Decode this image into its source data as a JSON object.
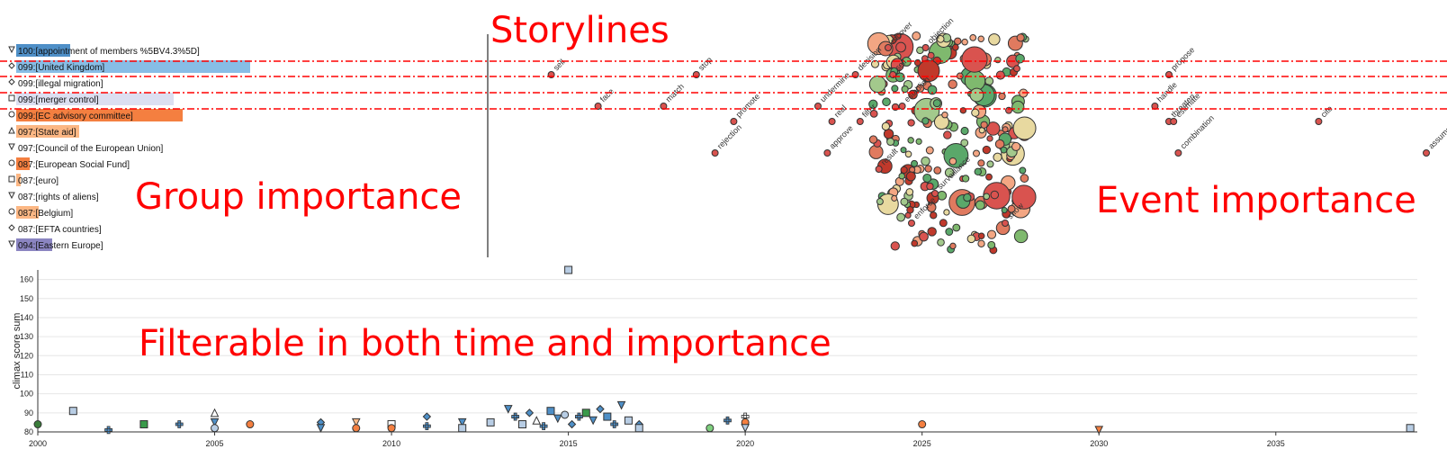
{
  "overlays": {
    "storylines": "Storylines",
    "group_importance": "Group importance",
    "event_importance": "Event importance",
    "filterable": "Filterable in both time and importance"
  },
  "groups": [
    {
      "code": "100",
      "label": "[appointment of members %5BV4.3%5D]",
      "color": "#4e8fc7",
      "importance": 0.12,
      "icon": "triangle-down-icon"
    },
    {
      "code": "099",
      "label": "[United Kingdom]",
      "color": "#87bde6",
      "importance": 0.52,
      "icon": "diamond-icon"
    },
    {
      "code": "099",
      "label": "[illegal migration]",
      "color": "#ffffff",
      "importance": 0.0,
      "icon": "diamond-icon"
    },
    {
      "code": "099",
      "label": "[merger control]",
      "color": "#dcdff1",
      "importance": 0.35,
      "icon": "square-icon"
    },
    {
      "code": "099",
      "label": "[EC advisory committee]",
      "color": "#f47f40",
      "importance": 0.37,
      "icon": "circle-icon"
    },
    {
      "code": "097",
      "label": "[State aid]",
      "color": "#fcb784",
      "importance": 0.14,
      "icon": "triangle-up-icon"
    },
    {
      "code": "097",
      "label": "[Council of the European Union]",
      "color": "#ffffff",
      "importance": 0.0,
      "icon": "triangle-down-icon"
    },
    {
      "code": "087",
      "label": "[European Social Fund]",
      "color": "#f47f40",
      "importance": 0.03,
      "icon": "circle-icon"
    },
    {
      "code": "087",
      "label": "[euro]",
      "color": "#fcb784",
      "importance": 0.01,
      "icon": "square-icon"
    },
    {
      "code": "087",
      "label": "[rights of aliens]",
      "color": "#ffffff",
      "importance": 0.0,
      "icon": "triangle-down-icon"
    },
    {
      "code": "087",
      "label": "[Belgium]",
      "color": "#fcb784",
      "importance": 0.05,
      "icon": "circle-icon"
    },
    {
      "code": "087",
      "label": "[EFTA countries]",
      "color": "#ffffff",
      "importance": 0.0,
      "icon": "diamond-icon"
    },
    {
      "code": "094",
      "label": "[Eastern Europe]",
      "color": "#8b85c1",
      "importance": 0.08,
      "icon": "triangle-down-icon"
    }
  ],
  "event_labels": [
    {
      "text": "sell",
      "row": 1,
      "x": 0.13
    },
    {
      "text": "face",
      "row": 2,
      "x": 0.23
    },
    {
      "text": "match",
      "row": 2,
      "x": 0.37
    },
    {
      "text": "stop",
      "row": 1,
      "x": 0.44
    },
    {
      "text": "rejection",
      "row": 4,
      "x": 0.48
    },
    {
      "text": "promote",
      "row": 3,
      "x": 0.52
    },
    {
      "text": "undermine",
      "row": 2,
      "x": 0.7
    },
    {
      "text": "real",
      "row": 3,
      "x": 0.73
    },
    {
      "text": "approve",
      "row": 4,
      "x": 0.72
    },
    {
      "text": "decision",
      "row": 1,
      "x": 0.78
    },
    {
      "text": "filter",
      "row": 3,
      "x": 0.79
    },
    {
      "text": "result",
      "row": 5,
      "x": 0.83
    },
    {
      "text": "recover",
      "row": 0,
      "x": 0.85
    },
    {
      "text": "sell",
      "row": 1,
      "x": 0.86
    },
    {
      "text": "establish",
      "row": 2,
      "x": 0.88
    },
    {
      "text": "objection",
      "row": 0,
      "x": 0.93
    },
    {
      "text": "propose",
      "row": 1,
      "x": 1.45
    },
    {
      "text": "handle",
      "row": 2,
      "x": 1.42
    },
    {
      "text": "threaten",
      "row": 3,
      "x": 1.45
    },
    {
      "text": "estimate",
      "row": 3,
      "x": 1.46
    },
    {
      "text": "combination",
      "row": 4,
      "x": 1.47
    },
    {
      "text": "cite",
      "row": 3,
      "x": 1.77
    },
    {
      "text": "assumption",
      "row": 4,
      "x": 2.0
    },
    {
      "text": "enforce",
      "row": 7,
      "x": 0.9
    },
    {
      "text": "surveillance",
      "row": 6,
      "x": 0.95
    },
    {
      "text": "show",
      "row": 7,
      "x": 1.1
    }
  ],
  "chart_data": {
    "type": "scatter",
    "xlabel": "",
    "ylabel": "climax score sum",
    "xlim": [
      2000,
      2039
    ],
    "ylim": [
      80,
      165
    ],
    "xticks": [
      2000,
      2005,
      2010,
      2015,
      2020,
      2025,
      2030,
      2035
    ],
    "yticks": [
      80,
      90,
      100,
      110,
      120,
      130,
      140,
      150,
      160
    ],
    "grid": true,
    "points": [
      {
        "x": 2000.0,
        "y": 84,
        "shape": "circle",
        "color": "#3a7d3a"
      },
      {
        "x": 2001.0,
        "y": 91,
        "shape": "square",
        "color": "#b8cde4"
      },
      {
        "x": 2002.0,
        "y": 81,
        "shape": "plus",
        "color": "#4e8fc7"
      },
      {
        "x": 2003.0,
        "y": 84,
        "shape": "square",
        "color": "#3a9a4a"
      },
      {
        "x": 2004.0,
        "y": 84,
        "shape": "plus",
        "color": "#4e8fc7"
      },
      {
        "x": 2005.0,
        "y": 90,
        "shape": "triangle-up",
        "color": "#ffffff"
      },
      {
        "x": 2005.0,
        "y": 85,
        "shape": "triangle-down",
        "color": "#4e8fc7"
      },
      {
        "x": 2005.0,
        "y": 82,
        "shape": "circle",
        "color": "#b8cde4"
      },
      {
        "x": 2006.0,
        "y": 84,
        "shape": "circle",
        "color": "#f47f40"
      },
      {
        "x": 2008.0,
        "y": 85,
        "shape": "diamond",
        "color": "#4e8fc7"
      },
      {
        "x": 2008.0,
        "y": 82,
        "shape": "triangle-down",
        "color": "#4e8fc7"
      },
      {
        "x": 2009.0,
        "y": 85,
        "shape": "triangle-down",
        "color": "#fcb784"
      },
      {
        "x": 2009.0,
        "y": 82,
        "shape": "circle",
        "color": "#f47f40"
      },
      {
        "x": 2010.0,
        "y": 84,
        "shape": "square",
        "color": "#ffffff"
      },
      {
        "x": 2010.0,
        "y": 82,
        "shape": "circle",
        "color": "#f47f40"
      },
      {
        "x": 2011.0,
        "y": 88,
        "shape": "diamond",
        "color": "#4e8fc7"
      },
      {
        "x": 2011.0,
        "y": 83,
        "shape": "plus",
        "color": "#4e8fc7"
      },
      {
        "x": 2012.0,
        "y": 85,
        "shape": "triangle-down",
        "color": "#4e8fc7"
      },
      {
        "x": 2012.0,
        "y": 82,
        "shape": "square",
        "color": "#b8cde4"
      },
      {
        "x": 2012.8,
        "y": 85,
        "shape": "square",
        "color": "#b8cde4"
      },
      {
        "x": 2013.3,
        "y": 92,
        "shape": "triangle-down",
        "color": "#4e8fc7"
      },
      {
        "x": 2013.5,
        "y": 88,
        "shape": "plus",
        "color": "#4e8fc7"
      },
      {
        "x": 2013.7,
        "y": 84,
        "shape": "square",
        "color": "#b8cde4"
      },
      {
        "x": 2013.9,
        "y": 90,
        "shape": "diamond",
        "color": "#4e8fc7"
      },
      {
        "x": 2014.1,
        "y": 86,
        "shape": "triangle-up",
        "color": "#ffffff"
      },
      {
        "x": 2014.3,
        "y": 83,
        "shape": "plus",
        "color": "#4e8fc7"
      },
      {
        "x": 2014.5,
        "y": 91,
        "shape": "square",
        "color": "#4e8fc7"
      },
      {
        "x": 2014.7,
        "y": 87,
        "shape": "triangle-down",
        "color": "#4e8fc7"
      },
      {
        "x": 2014.9,
        "y": 89,
        "shape": "circle",
        "color": "#b8cde4"
      },
      {
        "x": 2015.0,
        "y": 166,
        "shape": "square",
        "color": "#b8cde4"
      },
      {
        "x": 2015.1,
        "y": 84,
        "shape": "diamond",
        "color": "#4e8fc7"
      },
      {
        "x": 2015.3,
        "y": 88,
        "shape": "plus",
        "color": "#4e8fc7"
      },
      {
        "x": 2015.5,
        "y": 90,
        "shape": "square",
        "color": "#3a9a4a"
      },
      {
        "x": 2015.7,
        "y": 86,
        "shape": "triangle-down",
        "color": "#4e8fc7"
      },
      {
        "x": 2015.9,
        "y": 92,
        "shape": "diamond",
        "color": "#4e8fc7"
      },
      {
        "x": 2016.1,
        "y": 88,
        "shape": "square",
        "color": "#4e8fc7"
      },
      {
        "x": 2016.3,
        "y": 84,
        "shape": "plus",
        "color": "#4e8fc7"
      },
      {
        "x": 2016.5,
        "y": 94,
        "shape": "triangle-down",
        "color": "#4e8fc7"
      },
      {
        "x": 2016.7,
        "y": 86,
        "shape": "square",
        "color": "#b8cde4"
      },
      {
        "x": 2017.0,
        "y": 84,
        "shape": "diamond",
        "color": "#4e8fc7"
      },
      {
        "x": 2017.0,
        "y": 82,
        "shape": "square",
        "color": "#b8cde4"
      },
      {
        "x": 2019.0,
        "y": 82,
        "shape": "circle",
        "color": "#7ecf7e"
      },
      {
        "x": 2019.5,
        "y": 86,
        "shape": "plus",
        "color": "#4e8fc7"
      },
      {
        "x": 2020.0,
        "y": 88,
        "shape": "plus",
        "color": "#ffffff"
      },
      {
        "x": 2020.0,
        "y": 85,
        "shape": "circle",
        "color": "#f47f40"
      },
      {
        "x": 2020.0,
        "y": 82,
        "shape": "triangle-down",
        "color": "#b8cde4"
      },
      {
        "x": 2025.0,
        "y": 84,
        "shape": "circle",
        "color": "#f47f40"
      },
      {
        "x": 2030.0,
        "y": 81,
        "shape": "triangle-down",
        "color": "#f47f40"
      },
      {
        "x": 2038.8,
        "y": 82,
        "shape": "square",
        "color": "#b8cde4"
      }
    ]
  },
  "colors": {
    "storyline_dash": "#ff0000",
    "event_stroke": "#8b1a1a",
    "overlay_text": "#ff0000"
  }
}
